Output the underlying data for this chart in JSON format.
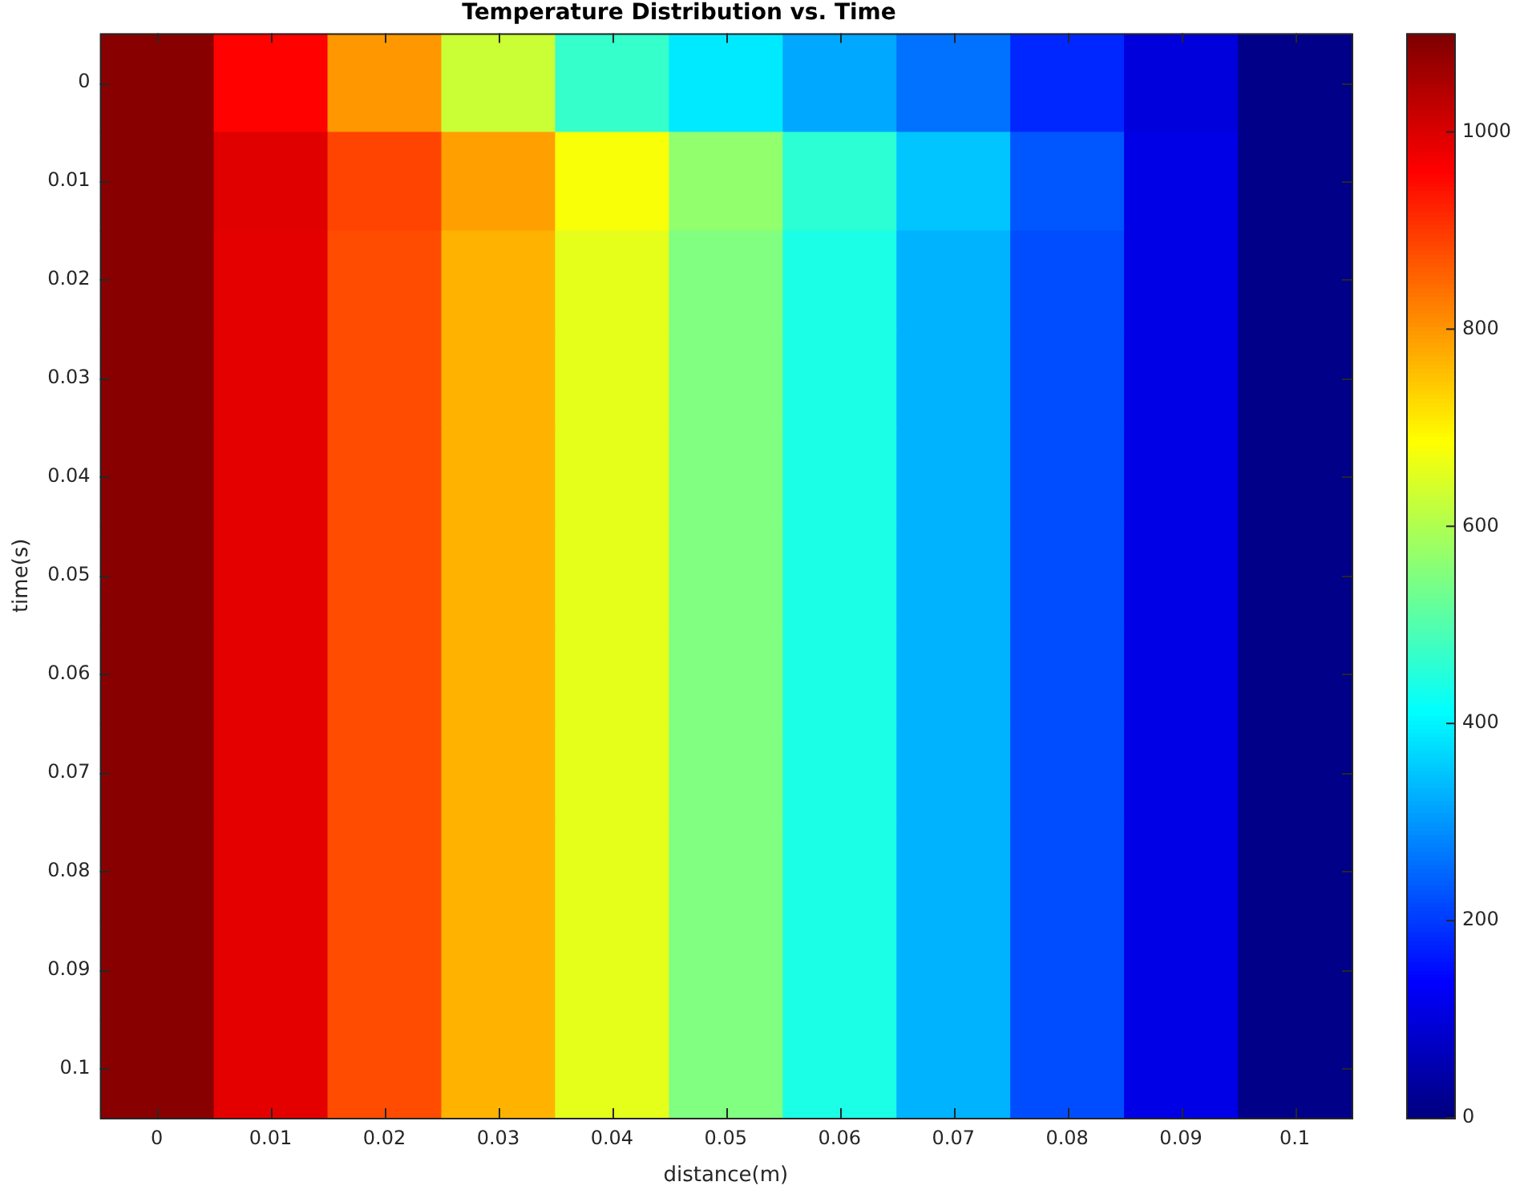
{
  "chart_data": {
    "type": "heatmap",
    "title": "Temperature Distribution vs. Time",
    "xlabel": "distance(m)",
    "ylabel": "time(s)",
    "categories": [
      "0",
      "0.01",
      "0.02",
      "0.03",
      "0.04",
      "0.05",
      "0.06",
      "0.07",
      "0.08",
      "0.09",
      "0.1"
    ],
    "y_categories": [
      "0",
      "0.01",
      "0.02",
      "0.03",
      "0.04",
      "0.05",
      "0.06",
      "0.07",
      "0.08",
      "0.09",
      "0.1"
    ],
    "clim": [
      0,
      1100
    ],
    "cticks": [
      0,
      200,
      400,
      600,
      800,
      1000
    ],
    "cells": [
      [
        1090,
        960,
        800,
        630,
        470,
        390,
        320,
        260,
        180,
        100,
        10
      ],
      [
        1090,
        995,
        890,
        790,
        680,
        570,
        460,
        350,
        230,
        110,
        10
      ],
      [
        1090,
        990,
        880,
        770,
        660,
        550,
        440,
        330,
        220,
        110,
        10
      ],
      [
        1090,
        990,
        880,
        770,
        660,
        550,
        440,
        330,
        220,
        110,
        10
      ],
      [
        1090,
        990,
        880,
        770,
        660,
        550,
        440,
        330,
        220,
        110,
        10
      ],
      [
        1090,
        990,
        880,
        770,
        660,
        550,
        440,
        330,
        220,
        110,
        10
      ],
      [
        1090,
        990,
        880,
        770,
        660,
        550,
        440,
        330,
        220,
        110,
        10
      ],
      [
        1090,
        990,
        880,
        770,
        660,
        550,
        440,
        330,
        220,
        110,
        10
      ],
      [
        1090,
        990,
        880,
        770,
        660,
        550,
        440,
        330,
        220,
        110,
        10
      ],
      [
        1090,
        990,
        880,
        770,
        660,
        550,
        440,
        330,
        220,
        110,
        10
      ],
      [
        1090,
        990,
        880,
        770,
        660,
        550,
        440,
        330,
        220,
        110,
        10
      ]
    ]
  }
}
